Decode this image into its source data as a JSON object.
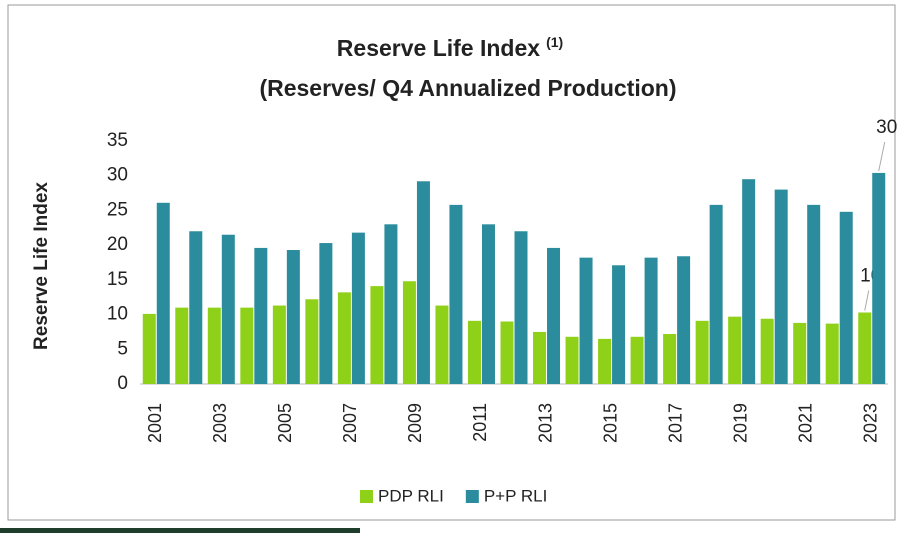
{
  "chart_data": {
    "type": "bar",
    "title": "Reserve Life Index",
    "title_note": "(1)",
    "subtitle": "(Reserves/ Q4 Annualized Production)",
    "ylabel": "Reserve Life Index",
    "categories": [
      "2001",
      null,
      "2003",
      null,
      "2005",
      null,
      "2007",
      null,
      "2009",
      null,
      "2011",
      null,
      "2013",
      null,
      "2015",
      null,
      "2017",
      null,
      "2019",
      null,
      "2021",
      null,
      "2023"
    ],
    "series": [
      {
        "name": "PDP RLI",
        "color": "#8fd118",
        "values": [
          10.1,
          11.0,
          11.0,
          11.0,
          11.3,
          12.2,
          13.2,
          14.1,
          14.8,
          11.3,
          9.1,
          9.0,
          7.5,
          6.8,
          6.5,
          6.8,
          7.2,
          9.1,
          9.7,
          9.4,
          8.8,
          8.7,
          10.3
        ],
        "value_labels": [
          null,
          null,
          null,
          null,
          null,
          null,
          null,
          null,
          null,
          null,
          null,
          null,
          null,
          null,
          null,
          null,
          null,
          null,
          null,
          null,
          null,
          null,
          "10"
        ]
      },
      {
        "name": "P+P RLI",
        "color": "#2a8c9c",
        "values": [
          26.1,
          22.0,
          21.5,
          19.6,
          19.3,
          20.3,
          21.8,
          23.0,
          29.2,
          25.8,
          23.0,
          22.0,
          19.6,
          18.2,
          17.1,
          18.2,
          18.4,
          25.8,
          29.5,
          28.0,
          25.8,
          24.8,
          30.4
        ],
        "value_labels": [
          null,
          null,
          null,
          null,
          null,
          null,
          null,
          null,
          null,
          null,
          null,
          null,
          null,
          null,
          null,
          null,
          null,
          null,
          null,
          null,
          null,
          null,
          "30"
        ]
      }
    ],
    "ylim": [
      0,
      35
    ],
    "yticks": [
      0,
      5,
      10,
      15,
      20,
      25,
      30,
      35
    ],
    "grid": false,
    "legend": "bottom"
  }
}
